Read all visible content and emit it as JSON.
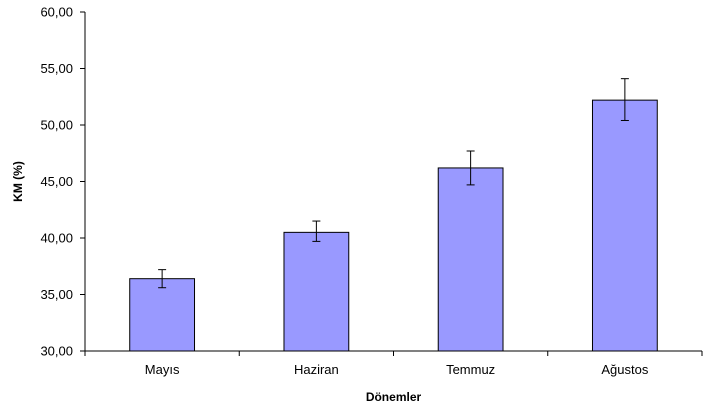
{
  "chart_data": {
    "type": "bar",
    "categories": [
      "Mayıs",
      "Haziran",
      "Temmuz",
      "Ağustos"
    ],
    "values": [
      36.4,
      40.5,
      46.2,
      52.2
    ],
    "error_bars": [
      {
        "low": 35.6,
        "high": 37.2
      },
      {
        "low": 39.7,
        "high": 41.5
      },
      {
        "low": 44.7,
        "high": 47.7
      },
      {
        "low": 50.4,
        "high": 54.1
      }
    ],
    "xlabel": "Dönemler",
    "ylabel": "KM (%)",
    "ylim": [
      30,
      60
    ],
    "yticks": [
      30,
      35,
      40,
      45,
      50,
      55,
      60
    ],
    "ytick_labels": [
      "30,00",
      "35,00",
      "40,00",
      "45,00",
      "50,00",
      "55,00",
      "60,00"
    ],
    "grid": false,
    "colors": {
      "bar_fill": "#9999ff",
      "bar_stroke": "#000000",
      "axis": "#000000"
    }
  }
}
